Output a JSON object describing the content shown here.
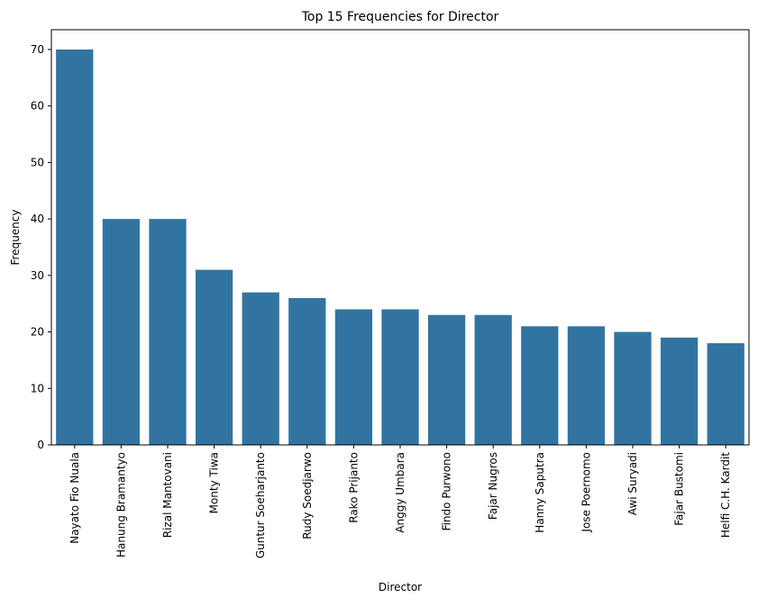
{
  "chart_data": {
    "type": "bar",
    "title": "Top 15 Frequencies for Director",
    "xlabel": "Director",
    "ylabel": "Frequency",
    "categories": [
      "Nayato Fio Nuala",
      "Hanung Bramantyo",
      "Rizal Mantovani",
      "Monty Tiwa",
      "Guntur Soeharjanto",
      "Rudy Soedjarwo",
      "Rako Prijanto",
      "Anggy Umbara",
      "Findo Purwono",
      "Fajar Nugros",
      "Hanny Saputra",
      "Jose Poernomo",
      "Awi Suryadi",
      "Fajar Bustomi",
      "Helfi C.H. Kardit"
    ],
    "values": [
      70,
      40,
      40,
      31,
      27,
      26,
      24,
      24,
      23,
      23,
      21,
      21,
      20,
      19,
      18
    ],
    "ylim": [
      0,
      73.5
    ],
    "yticks": [
      0,
      10,
      20,
      30,
      40,
      50,
      60,
      70
    ],
    "grid": false,
    "bar_color": "#3274a1"
  }
}
